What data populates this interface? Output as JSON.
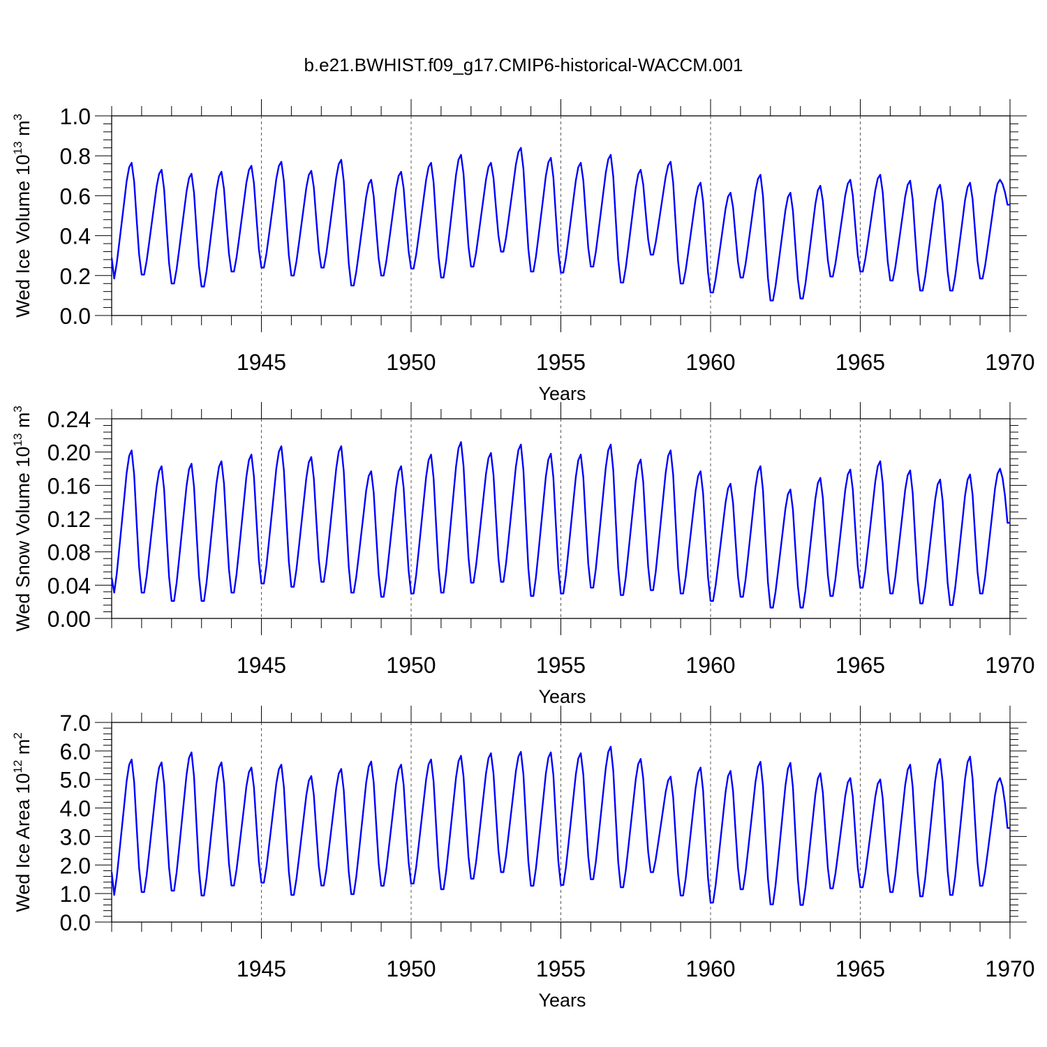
{
  "title": "b.e21.BWHIST.f09_g17.CMIP6-historical-WACCM.001",
  "chart_data": [
    {
      "type": "line",
      "id": "ice-volume",
      "ylabel": "Wed Ice Volume 10",
      "ylabel_sup": "13",
      "ylabel_unit": "m",
      "ylabel_unit_sup": "3",
      "xlabel": "Years",
      "xlim": [
        1940,
        1970
      ],
      "ylim": [
        0.0,
        1.0
      ],
      "yticks": [
        0.0,
        0.2,
        0.4,
        0.6,
        0.8,
        1.0
      ],
      "ytick_labels": [
        "0.0",
        "0.2",
        "0.4",
        "0.6",
        "0.8",
        "1.0"
      ],
      "xticks": [
        1945,
        1950,
        1955,
        1960,
        1965,
        1970
      ],
      "xtick_labels": [
        "1945",
        "1950",
        "1955",
        "1960",
        "1965",
        "1970"
      ],
      "grid": "vertical dashed at major x ticks",
      "series": [
        {
          "name": "Wed Ice Volume",
          "color": "#0000ff",
          "start_year": 1940,
          "monthly_annual_min": [
            0.185,
            0.205,
            0.16,
            0.145,
            0.22,
            0.24,
            0.2,
            0.24,
            0.15,
            0.2,
            0.235,
            0.19,
            0.245,
            0.32,
            0.22,
            0.215,
            0.245,
            0.165,
            0.305,
            0.16,
            0.115,
            0.19,
            0.075,
            0.085,
            0.195,
            0.22,
            0.175,
            0.125,
            0.125,
            0.185
          ],
          "monthly_annual_max": [
            0.765,
            0.73,
            0.71,
            0.72,
            0.75,
            0.77,
            0.725,
            0.78,
            0.68,
            0.72,
            0.765,
            0.805,
            0.765,
            0.84,
            0.79,
            0.765,
            0.805,
            0.73,
            0.77,
            0.665,
            0.615,
            0.705,
            0.615,
            0.65,
            0.68,
            0.705,
            0.675,
            0.655,
            0.665,
            0.68
          ],
          "start_value": 0.29,
          "end_value": 0.555
        }
      ]
    },
    {
      "type": "line",
      "id": "snow-volume",
      "ylabel": "Wed Snow Volume 10",
      "ylabel_sup": "13",
      "ylabel_unit": "m",
      "ylabel_unit_sup": "3",
      "xlabel": "Years",
      "xlim": [
        1940,
        1970
      ],
      "ylim": [
        0.0,
        0.24
      ],
      "yticks": [
        0.0,
        0.04,
        0.08,
        0.12,
        0.16,
        0.2,
        0.24
      ],
      "ytick_labels": [
        "0.00",
        "0.04",
        "0.08",
        "0.12",
        "0.16",
        "0.20",
        "0.24"
      ],
      "xticks": [
        1945,
        1950,
        1955,
        1960,
        1965,
        1970
      ],
      "xtick_labels": [
        "1945",
        "1950",
        "1955",
        "1960",
        "1965",
        "1970"
      ],
      "grid": "vertical dashed at major x ticks",
      "series": [
        {
          "name": "Wed Snow Volume",
          "color": "#0000ff",
          "start_year": 1940,
          "monthly_annual_min": [
            0.031,
            0.031,
            0.021,
            0.021,
            0.031,
            0.042,
            0.038,
            0.044,
            0.031,
            0.026,
            0.03,
            0.031,
            0.043,
            0.044,
            0.027,
            0.03,
            0.037,
            0.028,
            0.034,
            0.03,
            0.021,
            0.026,
            0.013,
            0.013,
            0.027,
            0.037,
            0.03,
            0.018,
            0.016,
            0.03
          ],
          "monthly_annual_max": [
            0.202,
            0.183,
            0.186,
            0.189,
            0.197,
            0.207,
            0.194,
            0.207,
            0.177,
            0.183,
            0.197,
            0.212,
            0.199,
            0.209,
            0.198,
            0.197,
            0.209,
            0.191,
            0.202,
            0.177,
            0.162,
            0.183,
            0.155,
            0.169,
            0.179,
            0.189,
            0.178,
            0.167,
            0.173,
            0.18
          ],
          "start_value": 0.049,
          "end_value": 0.115
        }
      ]
    },
    {
      "type": "line",
      "id": "ice-area",
      "ylabel": "Wed Ice Area 10",
      "ylabel_sup": "12",
      "ylabel_unit": "m",
      "ylabel_unit_sup": "2",
      "xlabel": "Years",
      "xlim": [
        1940,
        1970
      ],
      "ylim": [
        0.0,
        7.0
      ],
      "yticks": [
        0.0,
        1.0,
        2.0,
        3.0,
        4.0,
        5.0,
        6.0,
        7.0
      ],
      "ytick_labels": [
        "0.0",
        "1.0",
        "2.0",
        "3.0",
        "4.0",
        "5.0",
        "6.0",
        "7.0"
      ],
      "xticks": [
        1945,
        1950,
        1955,
        1960,
        1965,
        1970
      ],
      "xtick_labels": [
        "1945",
        "1950",
        "1955",
        "1960",
        "1965",
        "1970"
      ],
      "grid": "vertical dashed at major x ticks",
      "series": [
        {
          "name": "Wed Ice Area",
          "color": "#0000ff",
          "start_year": 1940,
          "monthly_annual_min": [
            0.95,
            1.05,
            1.1,
            0.93,
            1.28,
            1.38,
            0.95,
            1.28,
            0.98,
            1.27,
            1.35,
            1.15,
            1.52,
            1.75,
            1.27,
            1.3,
            1.5,
            1.22,
            1.75,
            0.93,
            0.68,
            1.15,
            0.62,
            0.6,
            1.18,
            1.22,
            1.05,
            0.9,
            0.95,
            1.27
          ],
          "monthly_annual_max": [
            5.7,
            5.6,
            5.95,
            5.6,
            5.42,
            5.52,
            5.12,
            5.37,
            5.63,
            5.52,
            5.7,
            5.83,
            5.92,
            5.97,
            5.95,
            5.92,
            6.15,
            5.72,
            5.1,
            5.42,
            5.3,
            5.62,
            5.58,
            5.22,
            5.05,
            5.0,
            5.52,
            5.72,
            5.8,
            5.05
          ],
          "start_value": 1.75,
          "end_value": 3.3
        }
      ]
    }
  ]
}
